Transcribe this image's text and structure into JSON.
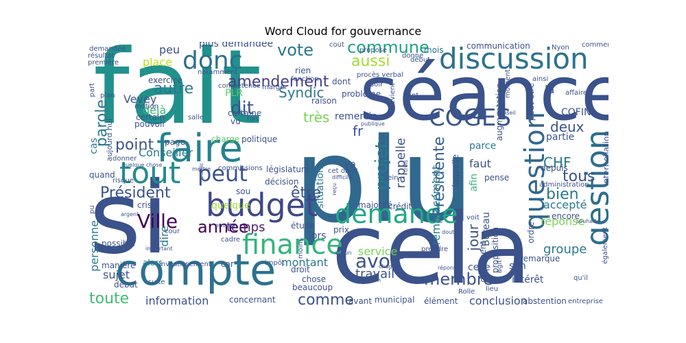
{
  "title": "Word Cloud for gouvernance",
  "words": [
    {
      "text": "plu",
      "color": "#31688e"
    },
    {
      "text": "fait",
      "color": "#21918c"
    },
    {
      "text": "séance",
      "color": "#3b528b"
    },
    {
      "text": "si",
      "color": "#3b528b"
    },
    {
      "text": "cela",
      "color": "#3b528b"
    },
    {
      "text": "compte",
      "color": "#2c728e"
    },
    {
      "text": "faire",
      "color": "#26828e"
    },
    {
      "text": "discussion",
      "color": "#2c728e"
    },
    {
      "text": "tout",
      "color": "#228c8d"
    },
    {
      "text": "donc",
      "color": "#2d708e"
    },
    {
      "text": "budget",
      "color": "#3f4788"
    },
    {
      "text": "question",
      "color": "#31688e"
    },
    {
      "text": "gestion",
      "color": "#2e6e8e"
    },
    {
      "text": "demande",
      "color": "#22a884"
    },
    {
      "text": "finance",
      "color": "#32b67a"
    },
    {
      "text": "peut",
      "color": "#3a548c"
    },
    {
      "text": "COGES",
      "color": "#39568c"
    },
    {
      "text": "vote",
      "color": "#2a788e"
    },
    {
      "text": "Ville",
      "color": "#440154"
    },
    {
      "text": "dit",
      "color": "#39558c"
    },
    {
      "text": "autre",
      "color": "#2a788e"
    },
    {
      "text": "point",
      "color": "#3b528b"
    },
    {
      "text": "Président",
      "color": "#3b528b"
    },
    {
      "text": "commune",
      "color": "#20a386"
    },
    {
      "text": "aussi",
      "color": "#a2da37"
    },
    {
      "text": "amendement",
      "color": "#433e85"
    },
    {
      "text": "avoir",
      "color": "#3b528b"
    },
    {
      "text": "membre",
      "color": "#3b528b"
    },
    {
      "text": "année",
      "color": "#440154"
    },
    {
      "text": "temps",
      "color": "#481f70"
    },
    {
      "text": "être",
      "color": "#3b528b"
    },
    {
      "text": "toute",
      "color": "#3fbc73"
    },
    {
      "text": "comme",
      "color": "#3b528b"
    },
    {
      "text": "jour",
      "color": "#3b528b"
    },
    {
      "text": "projet",
      "color": "#2a788e"
    },
    {
      "text": "Présidente",
      "color": "#35608d"
    },
    {
      "text": "tous",
      "color": "#3b528b"
    },
    {
      "text": "deux",
      "color": "#3b528b"
    },
    {
      "text": "bien",
      "color": "#2a788e"
    },
    {
      "text": "CHF",
      "color": "#2a788e"
    },
    {
      "text": "parole",
      "color": "#2a788e"
    },
    {
      "text": "fr",
      "color": "#3b528b"
    },
    {
      "text": "très",
      "color": "#7ad151"
    },
    {
      "text": "Syndic",
      "color": "#2a788e"
    },
    {
      "text": "peu",
      "color": "#3b528b"
    },
    {
      "text": "place",
      "color": "#c2df23"
    },
    {
      "text": "plus demandée",
      "color": "#3b528b"
    },
    {
      "text": "communication",
      "color": "#3b528b"
    },
    {
      "text": "mois",
      "color": "#2a788e"
    },
    {
      "text": "Vevey",
      "color": "#3b528b"
    },
    {
      "text": "déjà",
      "color": "#35b779"
    },
    {
      "text": "PLR",
      "color": "#5ec962"
    },
    {
      "text": "Conseiller",
      "color": "#2a788e"
    },
    {
      "text": "quelque",
      "color": "#a2da37"
    },
    {
      "text": "service",
      "color": "#7ad151"
    },
    {
      "text": "travail",
      "color": "#3b528b"
    },
    {
      "text": "information",
      "color": "#3b528b"
    },
    {
      "text": "montant",
      "color": "#2a788e"
    },
    {
      "text": "conclusion",
      "color": "#3b528b"
    },
    {
      "text": "groupe",
      "color": "#2a788e"
    },
    {
      "text": "réponse",
      "color": "#7ad151"
    },
    {
      "text": "accepté",
      "color": "#2a788e"
    },
    {
      "text": "remplacement",
      "color": "#2a788e"
    },
    {
      "text": "rappelle",
      "color": "#3b528b"
    },
    {
      "text": "situation",
      "color": "#2a788e"
    },
    {
      "text": "personne",
      "color": "#2a788e"
    },
    {
      "text": "dire",
      "color": "#2a788e"
    },
    {
      "text": "sujet",
      "color": "#3b528b"
    },
    {
      "text": "celle",
      "color": "#3b528b"
    },
    {
      "text": "Bureau",
      "color": "#3b528b"
    },
    {
      "text": "san",
      "color": "#3b528b"
    },
    {
      "text": "intérêt",
      "color": "#3b528b"
    },
    {
      "text": "remarque",
      "color": "#3b528b"
    },
    {
      "text": "interpellation",
      "color": "#3b528b"
    },
    {
      "text": "COFIN",
      "color": "#3b528b"
    },
    {
      "text": "encore",
      "color": "#3b528b"
    },
    {
      "text": "partie",
      "color": "#3b528b"
    },
    {
      "text": "faut",
      "color": "#3b528b"
    },
    {
      "text": "parce",
      "color": "#2a788e"
    },
    {
      "text": "afin",
      "color": "#35b779"
    },
    {
      "text": "va",
      "color": "#3b528b"
    },
    {
      "text": "lors",
      "color": "#3b528b"
    },
    {
      "text": "remercie",
      "color": "#3b528b"
    },
    {
      "text": "cas",
      "color": "#2a788e"
    },
    {
      "text": "là",
      "color": "#3b528b"
    },
    {
      "text": "exercice",
      "color": "#3b528b"
    },
    {
      "text": "rien",
      "color": "#3b528b"
    },
    {
      "text": "raison",
      "color": "#3b528b"
    },
    {
      "text": "certaine",
      "color": "#3b528b"
    },
    {
      "text": "problème",
      "color": "#3b528b"
    },
    {
      "text": "pouvoir",
      "color": "#3b528b"
    },
    {
      "text": "politique",
      "color": "#3b528b"
    },
    {
      "text": "charge",
      "color": "#5ec962"
    },
    {
      "text": "page",
      "color": "#3b528b"
    },
    {
      "text": "chose",
      "color": "#3b528b"
    },
    {
      "text": "beaucoup",
      "color": "#3b528b"
    },
    {
      "text": "droit",
      "color": "#3b528b"
    },
    {
      "text": "étude",
      "color": "#3b528b"
    },
    {
      "text": "municipal",
      "color": "#3b528b"
    },
    {
      "text": "avant",
      "color": "#3b528b"
    },
    {
      "text": "élément",
      "color": "#3b528b"
    },
    {
      "text": "abstention",
      "color": "#3b528b"
    },
    {
      "text": "concernant",
      "color": "#3b528b"
    },
    {
      "text": "débat",
      "color": "#3b528b"
    },
    {
      "text": "manière",
      "color": "#3b528b"
    },
    {
      "text": "possible",
      "color": "#3b528b"
    },
    {
      "text": "alors",
      "color": "#2a788e"
    },
    {
      "text": "crise",
      "color": "#3b528b"
    },
    {
      "text": "sou",
      "color": "#3b528b"
    },
    {
      "text": "décision",
      "color": "#3b528b"
    },
    {
      "text": "législature",
      "color": "#3b528b"
    },
    {
      "text": "commissions",
      "color": "#3b528b"
    },
    {
      "text": "compétence",
      "color": "#3b528b"
    },
    {
      "text": "dont",
      "color": "#3b528b"
    },
    {
      "text": "notamment",
      "color": "#3b528b"
    },
    {
      "text": "fonction",
      "color": "#3b528b"
    },
    {
      "text": "résultat",
      "color": "#3b528b"
    },
    {
      "text": "première",
      "color": "#3b528b"
    },
    {
      "text": "demandée",
      "color": "#3b528b"
    },
    {
      "text": "motion",
      "color": "#3b528b"
    },
    {
      "text": "certain",
      "color": "#3b528b"
    },
    {
      "text": "quand",
      "color": "#3b528b"
    },
    {
      "text": "risque",
      "color": "#3b528b"
    },
    {
      "text": "donner",
      "color": "#3b528b"
    },
    {
      "text": "aujourd hui",
      "color": "#3b528b"
    },
    {
      "text": "part",
      "color": "#3b528b"
    },
    {
      "text": "plan",
      "color": "#3b528b"
    },
    {
      "text": "salle",
      "color": "#3b528b"
    },
    {
      "text": "fois",
      "color": "#3b528b"
    },
    {
      "text": "vu",
      "color": "#3b528b"
    },
    {
      "text": "moins",
      "color": "#3b528b"
    },
    {
      "text": "crédit",
      "color": "#3b528b"
    },
    {
      "text": "majorité",
      "color": "#3b528b"
    },
    {
      "text": "sein",
      "color": "#3b528b"
    },
    {
      "text": "pense",
      "color": "#3b528b"
    },
    {
      "text": "laquelle",
      "color": "#3b528b"
    },
    {
      "text": "peut être",
      "color": "#3b528b"
    },
    {
      "text": "augmentation",
      "color": "#3b528b"
    },
    {
      "text": "depuis",
      "color": "#3b528b"
    },
    {
      "text": "administration",
      "color": "#3b528b"
    },
    {
      "text": "ordre",
      "color": "#3b528b"
    },
    {
      "text": "proposition",
      "color": "#3b528b"
    },
    {
      "text": "document",
      "color": "#3b528b"
    },
    {
      "text": "voit",
      "color": "#3b528b"
    },
    {
      "text": "prendre",
      "color": "#3b528b"
    },
    {
      "text": "prix",
      "color": "#3b528b"
    },
    {
      "text": "impôt",
      "color": "#3b528b"
    },
    {
      "text": "car",
      "color": "#3b528b"
    },
    {
      "text": "cadre",
      "color": "#3b528b"
    },
    {
      "text": "cour",
      "color": "#3b528b"
    },
    {
      "text": "suite",
      "color": "#3b528b"
    },
    {
      "text": "investissement",
      "color": "#3b528b"
    },
    {
      "text": "pu",
      "color": "#3b528b"
    },
    {
      "text": "entre",
      "color": "#3b528b"
    },
    {
      "text": "également",
      "color": "#3b528b"
    },
    {
      "text": "entreprise",
      "color": "#3b528b"
    },
    {
      "text": "lieu",
      "color": "#3b528b"
    },
    {
      "text": "Rolle",
      "color": "#3b528b"
    },
    {
      "text": "qu'il",
      "color": "#3b528b"
    },
    {
      "text": "agit",
      "color": "#3b528b"
    },
    {
      "text": "ainsi",
      "color": "#3b528b"
    },
    {
      "text": "affaire",
      "color": "#3b528b"
    },
    {
      "text": "moment",
      "color": "#3b528b"
    },
    {
      "text": "comment",
      "color": "#3b528b"
    },
    {
      "text": "Nyon",
      "color": "#3b528b"
    },
    {
      "text": "début",
      "color": "#3b528b"
    },
    {
      "text": "public",
      "color": "#3b528b"
    },
    {
      "text": "mettre",
      "color": "#3b528b"
    },
    {
      "text": "procès verbal",
      "color": "#3b528b"
    },
    {
      "text": "soir",
      "color": "#3b528b"
    },
    {
      "text": "revient",
      "color": "#3b528b"
    },
    {
      "text": "tant",
      "color": "#3b528b"
    },
    {
      "text": "cet objet",
      "color": "#3b528b"
    },
    {
      "text": "difficile",
      "color": "#3b528b"
    },
    {
      "text": "reçu",
      "color": "#3b528b"
    },
    {
      "text": "trois",
      "color": "#3b528b"
    },
    {
      "text": "aucun",
      "color": "#3b528b"
    },
    {
      "text": "non",
      "color": "#3b528b"
    },
    {
      "text": "chaque",
      "color": "#3b528b"
    },
    {
      "text": "souhaite",
      "color": "#3b528b"
    },
    {
      "text": "doute",
      "color": "#3b528b"
    },
    {
      "text": "réponde",
      "color": "#3b528b"
    },
    {
      "text": "marge",
      "color": "#3b528b"
    },
    {
      "text": "propose",
      "color": "#3b528b"
    },
    {
      "text": "coût",
      "color": "#3b528b"
    },
    {
      "text": "donne",
      "color": "#3b528b"
    },
    {
      "text": "trouve",
      "color": "#3b528b"
    },
    {
      "text": "argent",
      "color": "#3b528b"
    },
    {
      "text": "quelque chose",
      "color": "#3b528b"
    },
    {
      "text": "ensuite",
      "color": "#3b528b"
    },
    {
      "text": "important",
      "color": "#3b528b"
    },
    {
      "text": "publique",
      "color": "#3b528b"
    },
    {
      "text": "conseil",
      "color": "#3b528b"
    }
  ]
}
